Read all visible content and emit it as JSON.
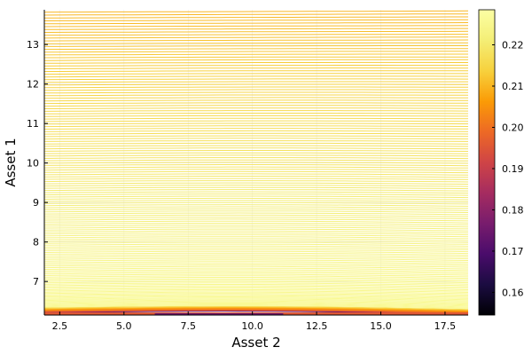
{
  "chart_data": {
    "type": "contour",
    "title": "",
    "xlabel": "Asset 2",
    "ylabel": "Asset 1",
    "xlim": [
      1.9,
      18.4
    ],
    "ylim": [
      6.15,
      13.88
    ],
    "xticks": [
      2.5,
      5.0,
      7.5,
      10.0,
      12.5,
      15.0,
      17.5
    ],
    "xtick_labels": [
      "2.5",
      "5.0",
      "7.5",
      "10.0",
      "12.5",
      "15.0",
      "17.5"
    ],
    "yticks": [
      7,
      8,
      9,
      10,
      11,
      12,
      13
    ],
    "ytick_labels": [
      "7",
      "8",
      "9",
      "10",
      "11",
      "12",
      "13"
    ],
    "colorbar": {
      "colormap": "inferno",
      "range": [
        0.1545,
        0.2285
      ],
      "ticks": [
        0.16,
        0.17,
        0.18,
        0.19,
        0.2,
        0.21,
        0.22
      ],
      "tick_labels": [
        "0.16",
        "0.17",
        "0.18",
        "0.19",
        "0.20",
        "0.21",
        "0.22"
      ]
    },
    "contour_levels": {
      "count": 150,
      "y_at_x_min_top": 13.82,
      "y_at_x_max_top": 13.85,
      "y_at_x_min_bottom": 6.22,
      "y_at_x_max_bottom": 6.18
    },
    "grid": true,
    "legend": "none"
  }
}
